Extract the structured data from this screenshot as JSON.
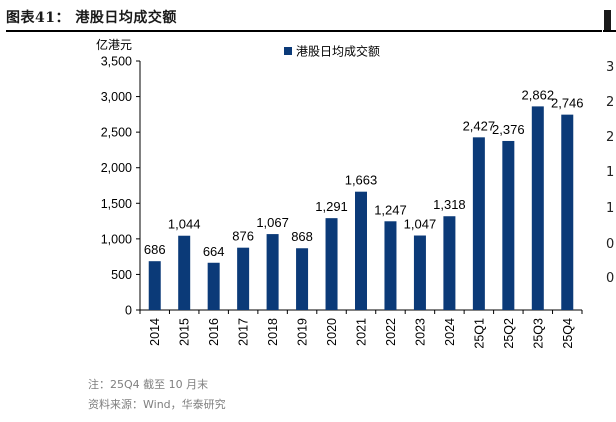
{
  "figure": {
    "title": "图表41：  港股日均成交额",
    "note": "注：25Q4 截至 10 月末",
    "source": "资料来源：Wind，华泰研究"
  },
  "right_sliver_chars": [
    "3",
    "2",
    "2",
    "1",
    "1",
    "0",
    "0"
  ],
  "colors": {
    "bar": "#0b3a78",
    "axis": "#000000",
    "text": "#000000",
    "note": "#7f7f7f"
  },
  "chart_data": {
    "type": "bar",
    "title": "",
    "unit_label": "亿港元",
    "xlabel": "",
    "ylabel": "亿港元",
    "ylim": [
      0,
      3500
    ],
    "yticks": [
      "0",
      "500",
      "1,000",
      "1,500",
      "2,000",
      "2,500",
      "3,000",
      "3,500"
    ],
    "ytick_values": [
      0,
      500,
      1000,
      1500,
      2000,
      2500,
      3000,
      3500
    ],
    "grid": false,
    "legend_position": "top-center",
    "categories": [
      "2014",
      "2015",
      "2016",
      "2017",
      "2018",
      "2019",
      "2020",
      "2021",
      "2022",
      "2023",
      "2024",
      "25Q1",
      "25Q2",
      "25Q3",
      "25Q4"
    ],
    "series": [
      {
        "name": "港股日均成交额",
        "values": [
          686,
          1044,
          664,
          876,
          1067,
          868,
          1291,
          1663,
          1247,
          1047,
          1318,
          2427,
          2376,
          2862,
          2746
        ],
        "labels": [
          "686",
          "1,044",
          "664",
          "876",
          "1,067",
          "868",
          "1,291",
          "1,663",
          "1,247",
          "1,047",
          "1,318",
          "2,427",
          "2,376",
          "2,862",
          "2,746"
        ]
      }
    ]
  }
}
